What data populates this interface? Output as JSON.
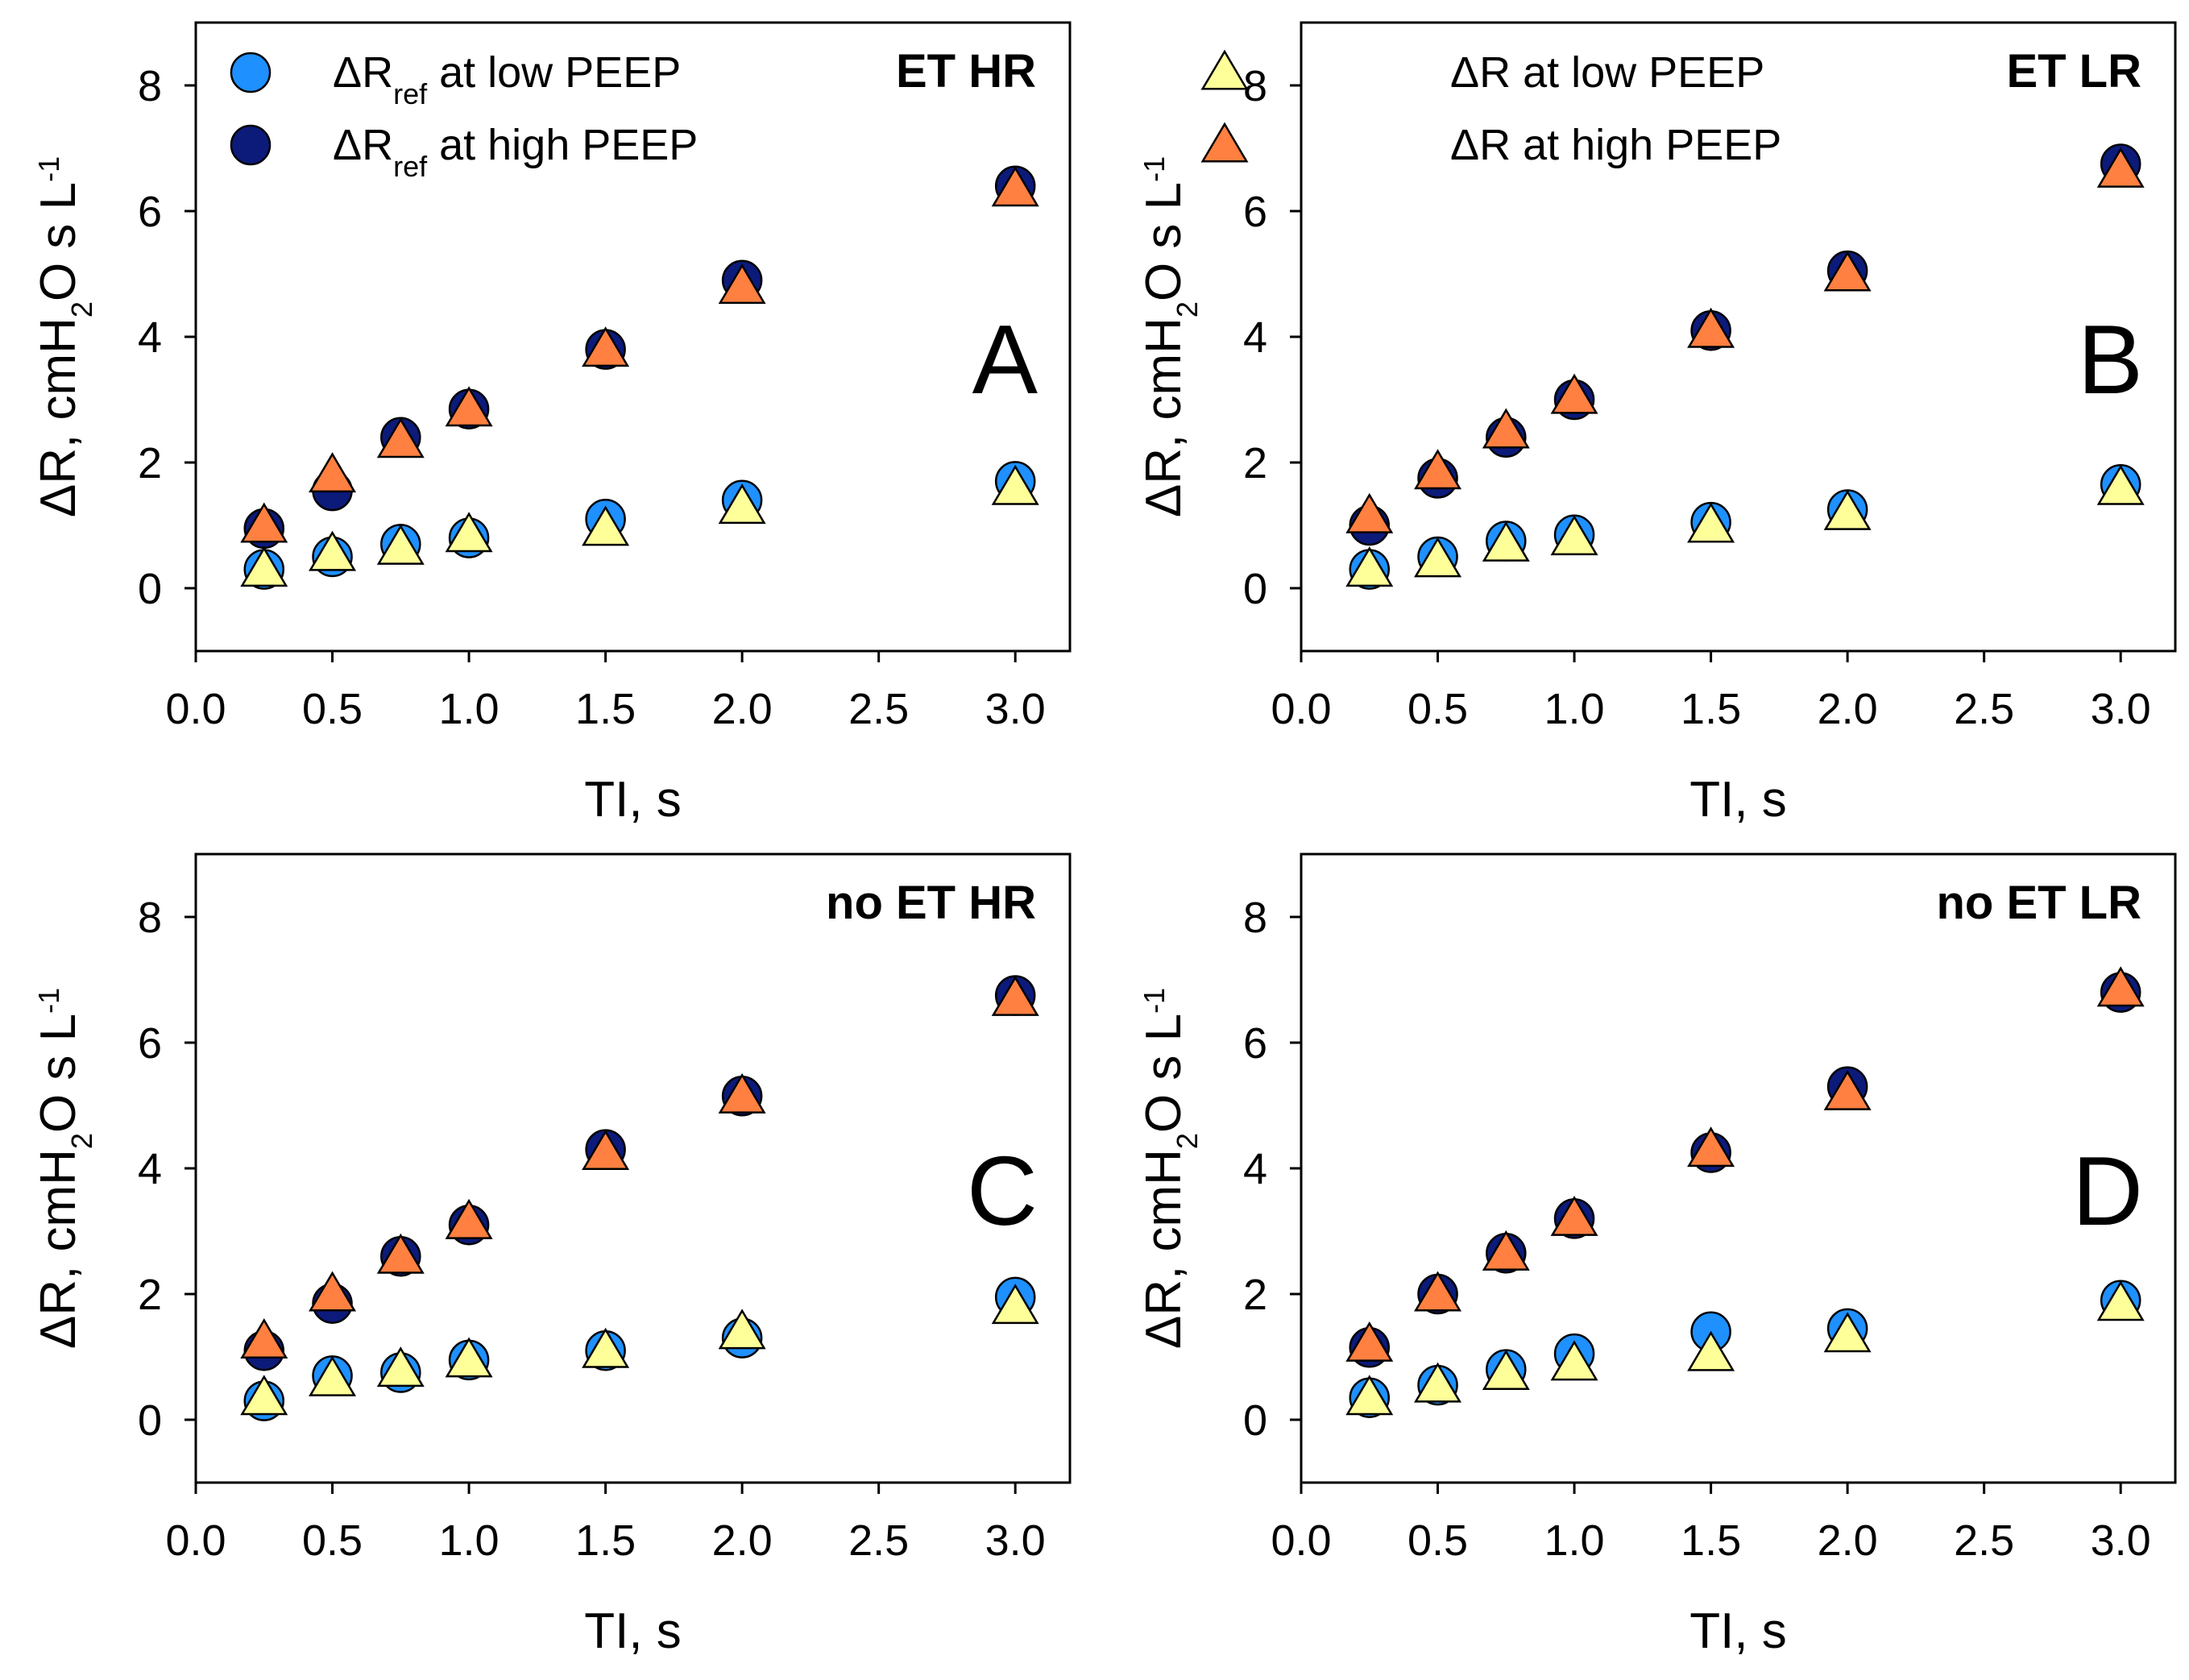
{
  "series_styles": {
    "ref_low": {
      "kind": "circle",
      "color": "#1E90FF"
    },
    "ref_high": {
      "kind": "circle",
      "color": "#0C1A7A"
    },
    "dr_low": {
      "kind": "triangle",
      "color": "#FFFF99"
    },
    "dr_high": {
      "kind": "triangle",
      "color": "#FF8040"
    }
  },
  "chart_data": [
    {
      "type": "scatter",
      "panel_letter": "A",
      "title": "ET HR",
      "xlabel": "TI, s",
      "ylabel": {
        "prefix": "ΔR, cmH",
        "sub": "2",
        "middle": "O s L",
        "sup": "-1"
      },
      "xlim": [
        0,
        3.2
      ],
      "ylim": [
        -1,
        9
      ],
      "xticks": [
        "0.0",
        "0.5",
        "1.0",
        "1.5",
        "2.0",
        "2.5",
        "3.0"
      ],
      "yticks": [
        "0",
        "2",
        "4",
        "6",
        "8"
      ],
      "legend": {
        "position": "top-left",
        "entries": [
          {
            "series": "ref_low",
            "text_pre": "ΔR",
            "text_sub": "ref",
            "text_post": " at low PEEP"
          },
          {
            "series": "ref_high",
            "text_pre": "ΔR",
            "text_sub": "ref",
            "text_post": " at high PEEP"
          }
        ]
      },
      "x": [
        0.25,
        0.5,
        0.75,
        1.0,
        1.5,
        2.0,
        3.0
      ],
      "series": [
        {
          "key": "ref_high",
          "name": "ΔRref at high PEEP",
          "values": [
            0.95,
            1.55,
            2.4,
            2.85,
            3.8,
            4.9,
            6.4
          ]
        },
        {
          "key": "dr_high",
          "name": "ΔR at high PEEP",
          "values": [
            1.0,
            1.8,
            2.35,
            2.85,
            3.8,
            4.8,
            6.35
          ]
        },
        {
          "key": "ref_low",
          "name": "ΔRref at low PEEP",
          "values": [
            0.3,
            0.5,
            0.7,
            0.8,
            1.1,
            1.4,
            1.7
          ]
        },
        {
          "key": "dr_low",
          "name": "ΔR at low PEEP",
          "values": [
            0.3,
            0.55,
            0.65,
            0.85,
            0.95,
            1.3,
            1.6
          ]
        }
      ]
    },
    {
      "type": "scatter",
      "panel_letter": "B",
      "title": "ET LR",
      "xlabel": "TI, s",
      "ylabel": {
        "prefix": "ΔR, cmH",
        "sub": "2",
        "middle": "O s L",
        "sup": "-1"
      },
      "xlim": [
        0,
        3.2
      ],
      "ylim": [
        -1,
        9
      ],
      "xticks": [
        "0.0",
        "0.5",
        "1.0",
        "1.5",
        "2.0",
        "2.5",
        "3.0"
      ],
      "yticks": [
        "0",
        "2",
        "4",
        "6",
        "8"
      ],
      "legend": {
        "position": "top-left",
        "entries": [
          {
            "series": "dr_low",
            "text_pre": "ΔR at low PEEP",
            "text_sub": "",
            "text_post": ""
          },
          {
            "series": "dr_high",
            "text_pre": "ΔR at high PEEP",
            "text_sub": "",
            "text_post": ""
          }
        ]
      },
      "x": [
        0.25,
        0.5,
        0.75,
        1.0,
        1.5,
        2.0,
        3.0
      ],
      "series": [
        {
          "key": "ref_high",
          "name": "ΔRref at high PEEP",
          "values": [
            1.0,
            1.75,
            2.4,
            3.0,
            4.1,
            5.05,
            6.75
          ]
        },
        {
          "key": "dr_high",
          "name": "ΔR at high PEEP",
          "values": [
            1.15,
            1.85,
            2.5,
            3.05,
            4.1,
            5.0,
            6.65
          ]
        },
        {
          "key": "ref_low",
          "name": "ΔRref at low PEEP",
          "values": [
            0.3,
            0.5,
            0.75,
            0.85,
            1.05,
            1.25,
            1.65
          ]
        },
        {
          "key": "dr_low",
          "name": "ΔR at low PEEP",
          "values": [
            0.3,
            0.45,
            0.7,
            0.8,
            1.0,
            1.2,
            1.6
          ]
        }
      ]
    },
    {
      "type": "scatter",
      "panel_letter": "C",
      "title": "no ET HR",
      "xlabel": "TI, s",
      "ylabel": {
        "prefix": "ΔR, cmH",
        "sub": "2",
        "middle": "O s L",
        "sup": "-1"
      },
      "xlim": [
        0,
        3.2
      ],
      "ylim": [
        -1,
        9
      ],
      "xticks": [
        "0.0",
        "0.5",
        "1.0",
        "1.5",
        "2.0",
        "2.5",
        "3.0"
      ],
      "yticks": [
        "0",
        "2",
        "4",
        "6",
        "8"
      ],
      "legend": null,
      "x": [
        0.25,
        0.5,
        0.75,
        1.0,
        1.5,
        2.0,
        3.0
      ],
      "series": [
        {
          "key": "ref_high",
          "name": "ΔRref at high PEEP",
          "values": [
            1.1,
            1.85,
            2.6,
            3.1,
            4.3,
            5.15,
            6.75
          ]
        },
        {
          "key": "dr_high",
          "name": "ΔR at high PEEP",
          "values": [
            1.25,
            2.0,
            2.6,
            3.15,
            4.25,
            5.15,
            6.7
          ]
        },
        {
          "key": "ref_low",
          "name": "ΔRref at low PEEP",
          "values": [
            0.3,
            0.7,
            0.75,
            0.95,
            1.1,
            1.3,
            1.95
          ]
        },
        {
          "key": "dr_low",
          "name": "ΔR at low PEEP",
          "values": [
            0.35,
            0.65,
            0.8,
            0.95,
            1.1,
            1.4,
            1.8
          ]
        }
      ]
    },
    {
      "type": "scatter",
      "panel_letter": "D",
      "title": "no ET LR",
      "xlabel": "TI, s",
      "ylabel": {
        "prefix": "ΔR, cmH",
        "sub": "2",
        "middle": "O s L",
        "sup": "-1"
      },
      "xlim": [
        0,
        3.2
      ],
      "ylim": [
        -1,
        9
      ],
      "xticks": [
        "0.0",
        "0.5",
        "1.0",
        "1.5",
        "2.0",
        "2.5",
        "3.0"
      ],
      "yticks": [
        "0",
        "2",
        "4",
        "6",
        "8"
      ],
      "legend": null,
      "x": [
        0.25,
        0.5,
        0.75,
        1.0,
        1.5,
        2.0,
        3.0
      ],
      "series": [
        {
          "key": "ref_high",
          "name": "ΔRref at high PEEP",
          "values": [
            1.15,
            2.0,
            2.65,
            3.2,
            4.25,
            5.3,
            6.8
          ]
        },
        {
          "key": "dr_high",
          "name": "ΔR at high PEEP",
          "values": [
            1.2,
            2.0,
            2.65,
            3.2,
            4.3,
            5.2,
            6.85
          ]
        },
        {
          "key": "ref_low",
          "name": "ΔRref at low PEEP",
          "values": [
            0.35,
            0.55,
            0.8,
            1.05,
            1.4,
            1.45,
            1.9
          ]
        },
        {
          "key": "dr_low",
          "name": "ΔR at low PEEP",
          "values": [
            0.35,
            0.55,
            0.75,
            0.9,
            1.05,
            1.35,
            1.85
          ]
        }
      ]
    }
  ]
}
